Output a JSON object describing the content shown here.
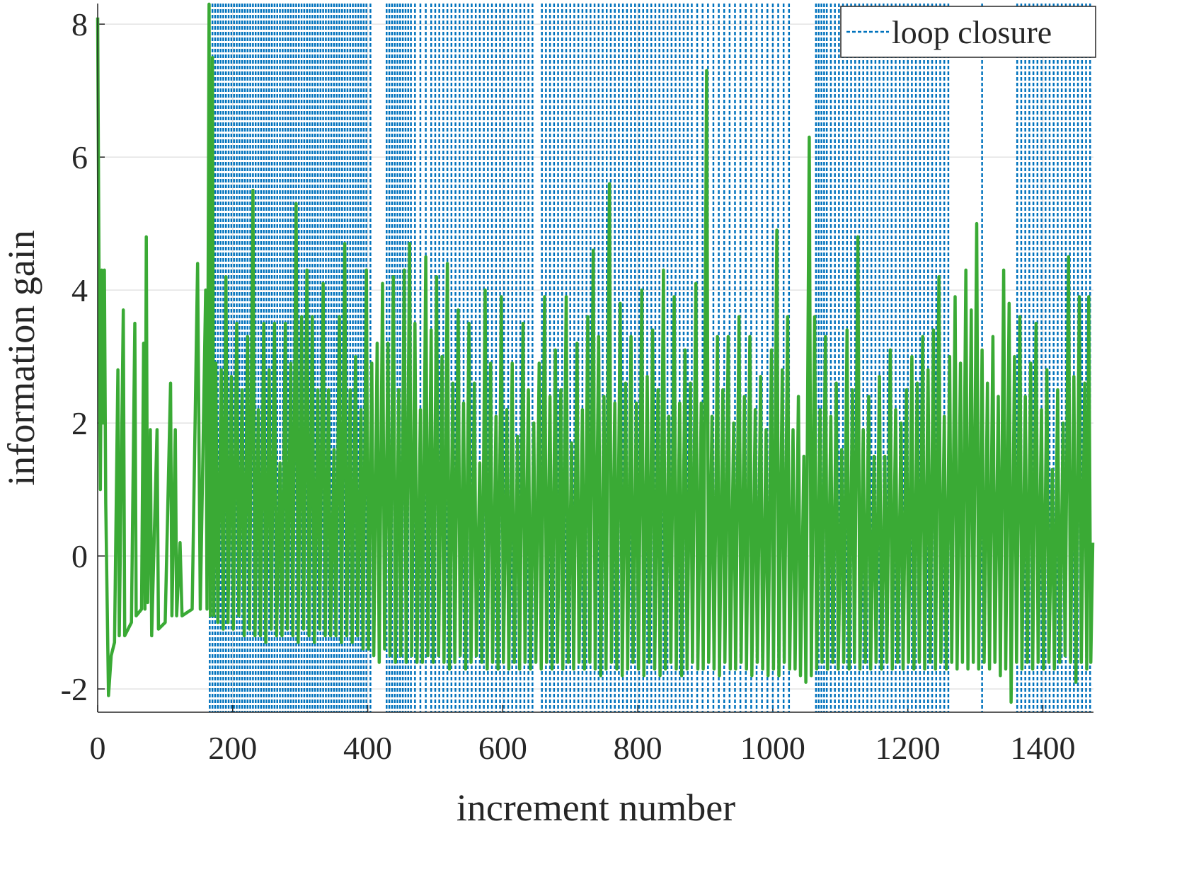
{
  "chart_data": {
    "type": "line",
    "x_label": "increment number",
    "y_label": "information gain",
    "xlim": [
      0,
      1475
    ],
    "ylim": [
      -2.35,
      8.31
    ],
    "xticks": [
      0,
      200,
      400,
      600,
      800,
      1000,
      1200,
      1400
    ],
    "yticks": [
      -2,
      0,
      2,
      4,
      6,
      8
    ],
    "grid": true,
    "legend": "top-right",
    "vlines": {
      "name": "loop closure",
      "color": "#0072bd",
      "x": [
        166,
        170,
        174,
        178,
        182,
        186,
        190,
        194,
        198,
        202,
        206,
        210,
        214,
        218,
        222,
        226,
        230,
        234,
        238,
        242,
        246,
        250,
        254,
        258,
        262,
        266,
        270,
        274,
        278,
        282,
        286,
        290,
        294,
        298,
        302,
        306,
        310,
        314,
        318,
        322,
        326,
        330,
        334,
        338,
        342,
        346,
        350,
        354,
        358,
        362,
        366,
        370,
        374,
        378,
        382,
        386,
        390,
        394,
        398,
        404,
        428,
        432,
        436,
        440,
        444,
        448,
        452,
        456,
        460,
        464,
        470,
        478,
        486,
        494,
        500,
        506,
        512,
        518,
        524,
        530,
        536,
        542,
        548,
        554,
        560,
        566,
        572,
        578,
        584,
        590,
        596,
        602,
        608,
        614,
        620,
        626,
        632,
        638,
        644,
        658,
        664,
        670,
        676,
        682,
        688,
        694,
        700,
        706,
        712,
        718,
        724,
        730,
        736,
        742,
        748,
        754,
        760,
        766,
        772,
        778,
        784,
        790,
        796,
        802,
        808,
        814,
        820,
        826,
        832,
        838,
        844,
        850,
        856,
        862,
        868,
        874,
        880,
        888,
        896,
        904,
        912,
        920,
        928,
        936,
        944,
        952,
        960,
        968,
        976,
        984,
        992,
        1000,
        1008,
        1016,
        1024,
        1064,
        1068,
        1072,
        1076,
        1080,
        1086,
        1092,
        1098,
        1104,
        1110,
        1116,
        1122,
        1128,
        1134,
        1140,
        1146,
        1152,
        1158,
        1164,
        1170,
        1176,
        1182,
        1188,
        1194,
        1200,
        1206,
        1212,
        1218,
        1224,
        1230,
        1236,
        1242,
        1248,
        1254,
        1260,
        1310,
        1362,
        1368,
        1374,
        1380,
        1386,
        1392,
        1398,
        1404,
        1410,
        1416,
        1422,
        1428,
        1434,
        1440,
        1446,
        1452,
        1458,
        1464,
        1470
      ]
    },
    "series": [
      {
        "color": "#3aaa35",
        "x": [
          0,
          2,
          4,
          6,
          8,
          10,
          12,
          16,
          20,
          25,
          30,
          32,
          38,
          40,
          50,
          55,
          57,
          65,
          68,
          70,
          72,
          74,
          78,
          80,
          88,
          90,
          100,
          108,
          110,
          115,
          117,
          122,
          125,
          140,
          148,
          152,
          160,
          162,
          165,
          167,
          170,
          172,
          175,
          178,
          183,
          186,
          190,
          193,
          198,
          201,
          206,
          209,
          214,
          217,
          222,
          225,
          230,
          233,
          238,
          241,
          246,
          249,
          254,
          257,
          262,
          265,
          270,
          273,
          278,
          281,
          286,
          289,
          294,
          297,
          302,
          305,
          310,
          313,
          318,
          321,
          326,
          329,
          334,
          337,
          342,
          345,
          350,
          353,
          358,
          361,
          366,
          369,
          374,
          377,
          382,
          385,
          390,
          393,
          398,
          401,
          406,
          409,
          414,
          417,
          422,
          425,
          430,
          433,
          438,
          441,
          446,
          449,
          454,
          457,
          462,
          465,
          470,
          473,
          478,
          481,
          486,
          489,
          494,
          497,
          502,
          505,
          510,
          513,
          518,
          521,
          526,
          529,
          534,
          537,
          542,
          545,
          550,
          553,
          558,
          561,
          566,
          569,
          574,
          577,
          582,
          585,
          590,
          593,
          598,
          601,
          606,
          609,
          614,
          617,
          622,
          625,
          630,
          633,
          638,
          641,
          646,
          649,
          654,
          657,
          662,
          665,
          670,
          673,
          678,
          681,
          686,
          689,
          694,
          697,
          702,
          705,
          710,
          713,
          718,
          721,
          726,
          729,
          734,
          737,
          742,
          745,
          750,
          753,
          758,
          761,
          766,
          769,
          774,
          777,
          782,
          785,
          790,
          793,
          798,
          801,
          806,
          809,
          814,
          817,
          822,
          825,
          830,
          833,
          838,
          841,
          846,
          849,
          854,
          857,
          862,
          865,
          870,
          873,
          878,
          881,
          886,
          889,
          894,
          897,
          902,
          905,
          910,
          913,
          918,
          921,
          926,
          929,
          934,
          937,
          942,
          945,
          950,
          953,
          958,
          961,
          966,
          969,
          974,
          977,
          982,
          985,
          990,
          993,
          998,
          1001,
          1006,
          1009,
          1014,
          1017,
          1022,
          1025,
          1030,
          1033,
          1038,
          1041,
          1046,
          1049,
          1054,
          1057,
          1062,
          1065,
          1070,
          1073,
          1078,
          1081,
          1086,
          1089,
          1094,
          1097,
          1102,
          1105,
          1110,
          1113,
          1118,
          1121,
          1126,
          1129,
          1134,
          1137,
          1142,
          1145,
          1150,
          1153,
          1158,
          1161,
          1166,
          1169,
          1174,
          1177,
          1182,
          1185,
          1190,
          1193,
          1198,
          1201,
          1206,
          1209,
          1214,
          1217,
          1222,
          1225,
          1230,
          1233,
          1238,
          1241,
          1246,
          1249,
          1254,
          1257,
          1262,
          1265,
          1270,
          1273,
          1278,
          1281,
          1286,
          1289,
          1294,
          1297,
          1302,
          1305,
          1310,
          1313,
          1318,
          1321,
          1326,
          1329,
          1334,
          1337,
          1342,
          1345,
          1350,
          1353,
          1358,
          1361,
          1366,
          1369,
          1374,
          1377,
          1382,
          1385,
          1390,
          1393,
          1398,
          1401,
          1406,
          1409,
          1414,
          1417,
          1422,
          1425,
          1430,
          1433,
          1438,
          1441,
          1446,
          1449,
          1454,
          1457,
          1462,
          1465,
          1468,
          1471,
          1474
        ],
        "values": [
          8.1,
          4.2,
          1,
          4.3,
          2,
          4.3,
          0.8,
          -2.1,
          -1.5,
          -1.3,
          2.8,
          -1.2,
          3.7,
          -1.2,
          -1,
          3.5,
          -0.9,
          -0.8,
          3.2,
          -0.8,
          4.8,
          -0.7,
          1.9,
          -1.2,
          1.9,
          -1.1,
          -1,
          2.6,
          -0.9,
          1.9,
          -0.9,
          0.2,
          -0.9,
          -0.8,
          4.4,
          -0.8,
          4,
          -0.8,
          8.3,
          -0.9,
          7.5,
          -0.9,
          2.9,
          -1,
          2.8,
          -1.1,
          4.2,
          -1,
          2.7,
          -1.1,
          3.5,
          -0.9,
          2.5,
          -1.2,
          3.3,
          -1.1,
          5.5,
          -1.2,
          2.2,
          -1.2,
          3.5,
          -1.3,
          2.8,
          -1.1,
          3.5,
          -1.2,
          1.4,
          -1.2,
          3.5,
          -1.1,
          2.9,
          -1.2,
          5.3,
          -1.3,
          3.6,
          -1.1,
          4.3,
          -1.2,
          3.6,
          -1.3,
          2.5,
          -1.1,
          4.1,
          -1.2,
          2.5,
          -1.2,
          1.6,
          -1.2,
          3.6,
          -1.3,
          4.7,
          -1.2,
          2.5,
          -1.3,
          3,
          -1.2,
          2.2,
          -1.4,
          4.3,
          -1.4,
          2.9,
          -1.5,
          3.2,
          -1.6,
          4.1,
          -1.4,
          3.2,
          -1.5,
          4.2,
          -1.6,
          2.5,
          -1.5,
          4.3,
          -1.6,
          4.7,
          -1.5,
          3.5,
          -1.6,
          2.2,
          -1.6,
          4.5,
          -1.5,
          3.4,
          -1.6,
          4.2,
          -1.5,
          3,
          -1.6,
          4.4,
          -1.7,
          2.6,
          -1.6,
          3.7,
          -1.5,
          2.3,
          -1.7,
          3.5,
          -1.6,
          2.6,
          -1.5,
          1.4,
          -1.6,
          4,
          -1.7,
          2.9,
          -1.6,
          2.1,
          -1.7,
          3.9,
          -1.6,
          2.2,
          -1.7,
          2.9,
          -1.6,
          1.8,
          -1.7,
          3.5,
          -1.6,
          2.5,
          -1.7,
          2,
          -1.6,
          2.9,
          -1.7,
          3.9,
          -1.6,
          2.4,
          -1.7,
          3.1,
          -1.6,
          2.5,
          -1.7,
          3.9,
          -1.6,
          1.7,
          -1.7,
          3.2,
          -1.6,
          2.2,
          -1.7,
          3.6,
          -1.6,
          4.6,
          -1.7,
          3.3,
          -1.8,
          2.4,
          -1.7,
          5.6,
          -1.6,
          2.3,
          -1.7,
          3.8,
          -1.8,
          2.6,
          -1.7,
          3.3,
          -1.6,
          2.3,
          -1.7,
          4,
          -1.8,
          2.7,
          -1.6,
          3.4,
          -1.7,
          2.5,
          -1.8,
          4.3,
          -1.7,
          2.1,
          -1.6,
          3.9,
          -1.7,
          2.3,
          -1.8,
          3.1,
          -1.7,
          2.6,
          -1.6,
          4.1,
          -1.7,
          2.3,
          -1.7,
          7.3,
          -1.6,
          2.1,
          -1.7,
          3.3,
          -1.8,
          2.5,
          -1.6,
          3.3,
          -1.7,
          2,
          -1.7,
          3.6,
          -1.6,
          2.4,
          -1.7,
          3.3,
          -1.8,
          2.2,
          -1.6,
          2.7,
          -1.7,
          1.9,
          -1.8,
          3.1,
          -1.7,
          4.9,
          -1.8,
          2.8,
          -1.6,
          3.6,
          -1.7,
          1.9,
          -1.7,
          2.4,
          -1.8,
          1.5,
          -1.9,
          6.3,
          -1.8,
          3.6,
          -1.7,
          2.2,
          -1.6,
          3.3,
          -1.7,
          2.1,
          -1.6,
          2.6,
          -1.7,
          1.6,
          -1.6,
          3.4,
          -1.7,
          2.5,
          -1.6,
          4.8,
          -1.7,
          1.9,
          -1.6,
          2.4,
          -1.7,
          1.5,
          -1.6,
          2.7,
          -1.7,
          1.5,
          -1.6,
          3.1,
          -1.7,
          2.2,
          -1.6,
          2,
          -1.7,
          2.5,
          -1.6,
          3,
          -1.7,
          2.6,
          -1.6,
          3.3,
          -1.7,
          2.8,
          -1.6,
          3.4,
          -1.7,
          4.2,
          -1.6,
          2.1,
          -1.7,
          3,
          -1.6,
          3.9,
          -1.7,
          2.9,
          -1.6,
          4.3,
          -1.7,
          3.7,
          -1.6,
          5,
          -1.7,
          3.1,
          -1.6,
          2.6,
          -1.7,
          3.3,
          -1.6,
          2.4,
          -1.8,
          4.3,
          -1.7,
          3.8,
          -2.2,
          3,
          -1.6,
          3.6,
          -1.7,
          2.4,
          -1.6,
          2.9,
          -1.7,
          3.5,
          -1.6,
          2.2,
          -1.7,
          2.8,
          -1.6,
          1.3,
          -1.7,
          2.5,
          -1.6,
          2,
          -1.5,
          4.5,
          -1.6,
          2.7,
          -1.9,
          3.9,
          -1.6,
          2.6,
          -1.7,
          3.9,
          -1.6,
          0.2
        ]
      }
    ]
  }
}
